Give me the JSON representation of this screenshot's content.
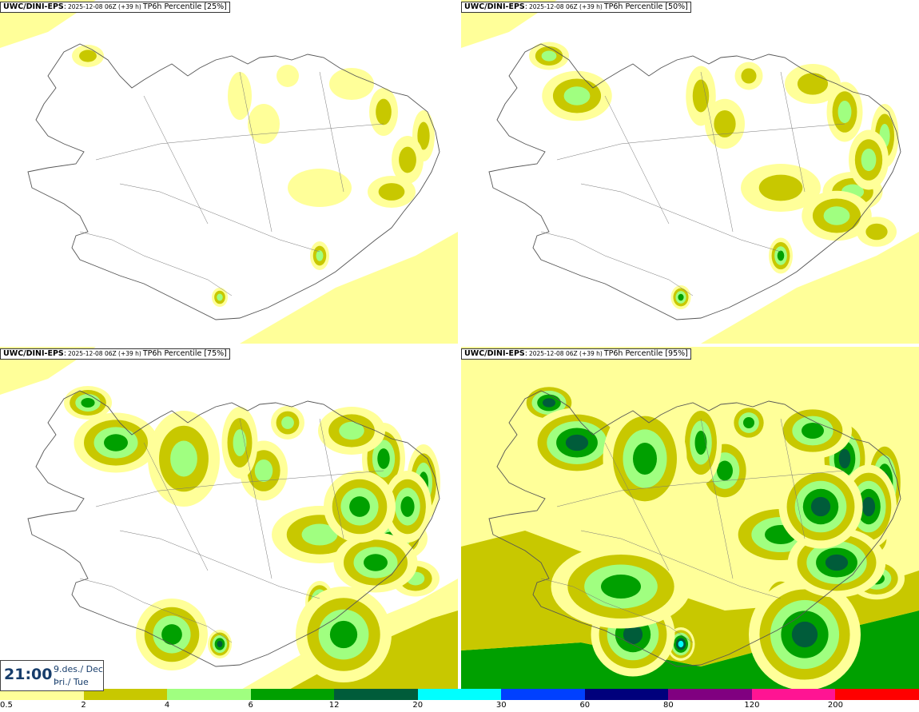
{
  "panels": [
    {
      "model": "UWC/DINI-EPS",
      "run": "2025-12-08 06Z (+39 h)",
      "product": "TP6h Percentile [25%]",
      "level": 0
    },
    {
      "model": "UWC/DINI-EPS",
      "run": "2025-12-08 06Z (+39 h)",
      "product": "TP6h Percentile [50%]",
      "level": 1
    },
    {
      "model": "UWC/DINI-EPS",
      "run": "2025-12-08 06Z (+39 h)",
      "product": "TP6h Percentile [75%]",
      "level": 2
    },
    {
      "model": "UWC/DINI-EPS",
      "run": "2025-12-08 06Z (+39 h)",
      "product": "TP6h Percentile [95%]",
      "level": 3
    }
  ],
  "valid_time": {
    "time": "21:00",
    "date": "9.des./ Dec",
    "weekday": "Þri./ Tue"
  },
  "colorbar": {
    "colors": [
      "#ffff99",
      "#c8c800",
      "#a0ff80",
      "#00a000",
      "#005c3a",
      "#00ffff",
      "#0040ff",
      "#00007c",
      "#800080",
      "#ff1493",
      "#ff0000"
    ],
    "tick_labels": [
      "0.5",
      "2",
      "4",
      "6",
      "12",
      "20",
      "30",
      "60",
      "80",
      "120",
      "200"
    ]
  }
}
